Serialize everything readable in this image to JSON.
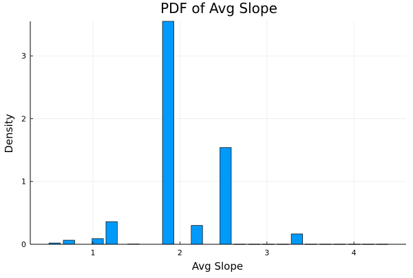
{
  "chart_data": {
    "type": "bar",
    "title": "PDF of Avg Slope",
    "xlabel": "Avg Slope",
    "ylabel": "Density",
    "xlim": [
      0.28,
      4.6
    ],
    "ylim": [
      0,
      3.55
    ],
    "xticks": [
      1,
      2,
      3,
      4
    ],
    "yticks": [
      0,
      1,
      2,
      3
    ],
    "grid": true,
    "legend": "none",
    "bar_color": "#009AFA",
    "bar_edge_color": "#1a1a1a",
    "bars": [
      {
        "x0": 0.495,
        "x1": 0.625,
        "value": 0.02
      },
      {
        "x0": 0.66,
        "x1": 0.79,
        "value": 0.065
      },
      {
        "x0": 0.99,
        "x1": 1.12,
        "value": 0.09
      },
      {
        "x0": 1.15,
        "x1": 1.28,
        "value": 0.36
      },
      {
        "x0": 1.4,
        "x1": 1.53,
        "value": 0.005
      },
      {
        "x0": 1.8,
        "x1": 1.93,
        "value": 3.55
      },
      {
        "x0": 2.13,
        "x1": 2.26,
        "value": 0.3
      },
      {
        "x0": 2.46,
        "x1": 2.59,
        "value": 1.54
      },
      {
        "x0": 2.62,
        "x1": 2.75,
        "value": 0.003
      },
      {
        "x0": 2.79,
        "x1": 2.92,
        "value": 0.003
      },
      {
        "x0": 2.95,
        "x1": 3.08,
        "value": 0.003
      },
      {
        "x0": 3.12,
        "x1": 3.25,
        "value": 0.003
      },
      {
        "x0": 3.28,
        "x1": 3.41,
        "value": 0.165
      },
      {
        "x0": 3.44,
        "x1": 3.57,
        "value": 0.003
      },
      {
        "x0": 3.61,
        "x1": 3.74,
        "value": 0.003
      },
      {
        "x0": 3.77,
        "x1": 3.9,
        "value": 0.003
      },
      {
        "x0": 3.94,
        "x1": 4.07,
        "value": 0.003
      },
      {
        "x0": 4.1,
        "x1": 4.23,
        "value": 0.003
      },
      {
        "x0": 4.26,
        "x1": 4.39,
        "value": 0.003
      }
    ]
  }
}
